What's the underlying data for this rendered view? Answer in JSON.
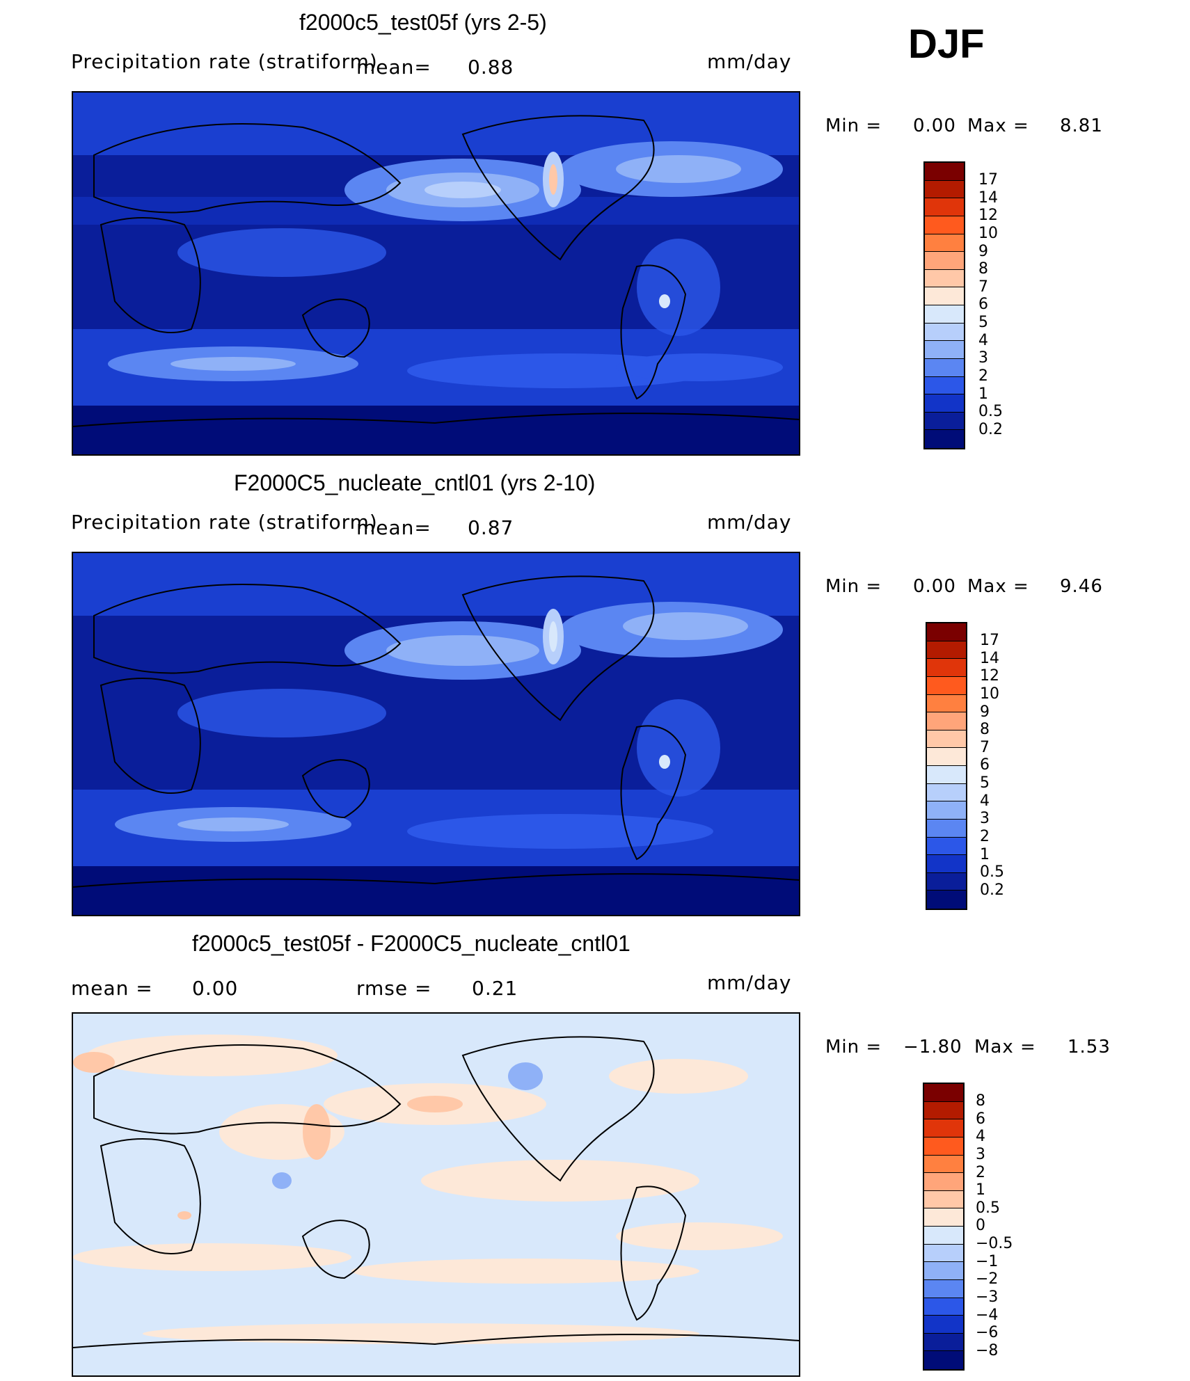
{
  "season": "DJF",
  "panels": [
    {
      "title": "f2000c5_test05f (yrs 2-5)",
      "variable": "Precipitation rate (stratiform)",
      "mean_label": "mean=",
      "mean_value": "0.88",
      "units": "mm/day",
      "min_label": "Min =",
      "min_value": "0.00",
      "max_label": "Max =",
      "max_value": "8.81",
      "colorbar": {
        "labels": [
          "17",
          "14",
          "12",
          "10",
          "9",
          "8",
          "7",
          "6",
          "5",
          "4",
          "3",
          "2",
          "1",
          "0.5",
          "0.2"
        ],
        "colors": [
          "#7a0000",
          "#b31b00",
          "#e0350a",
          "#ff5a1e",
          "#ff8040",
          "#ffa57a",
          "#ffc8a8",
          "#fde8d8",
          "#d8e8fb",
          "#b7cffb",
          "#8fb1f7",
          "#5b86f2",
          "#2c57e8",
          "#1234c8",
          "#0a1e9a",
          "#000c78"
        ]
      }
    },
    {
      "title": "F2000C5_nucleate_cntl01 (yrs 2-10)",
      "variable": "Precipitation rate (stratiform)",
      "mean_label": "mean=",
      "mean_value": "0.87",
      "units": "mm/day",
      "min_label": "Min =",
      "min_value": "0.00",
      "max_label": "Max =",
      "max_value": "9.46",
      "colorbar": {
        "labels": [
          "17",
          "14",
          "12",
          "10",
          "9",
          "8",
          "7",
          "6",
          "5",
          "4",
          "3",
          "2",
          "1",
          "0.5",
          "0.2"
        ],
        "colors": [
          "#7a0000",
          "#b31b00",
          "#e0350a",
          "#ff5a1e",
          "#ff8040",
          "#ffa57a",
          "#ffc8a8",
          "#fde8d8",
          "#d8e8fb",
          "#b7cffb",
          "#8fb1f7",
          "#5b86f2",
          "#2c57e8",
          "#1234c8",
          "#0a1e9a",
          "#000c78"
        ]
      }
    },
    {
      "title": "f2000c5_test05f - F2000C5_nucleate_cntl01",
      "mean_label": "mean =",
      "mean_value": "0.00",
      "rmse_label": "rmse =",
      "rmse_value": "0.21",
      "units": "mm/day",
      "min_label": "Min =",
      "min_value": "−1.80",
      "max_label": "Max =",
      "max_value": "1.53",
      "colorbar": {
        "labels": [
          "8",
          "6",
          "4",
          "3",
          "2",
          "1",
          "0.5",
          "0",
          "−0.5",
          "−1",
          "−2",
          "−3",
          "−4",
          "−6",
          "−8"
        ],
        "colors": [
          "#7a0000",
          "#b31b00",
          "#e0350a",
          "#ff5a1e",
          "#ff8040",
          "#ffa57a",
          "#ffc8a8",
          "#fde8d8",
          "#d8e8fb",
          "#b7cffb",
          "#8fb1f7",
          "#5b86f2",
          "#2c57e8",
          "#1234c8",
          "#0a1e9a",
          "#000c78"
        ]
      }
    }
  ]
}
